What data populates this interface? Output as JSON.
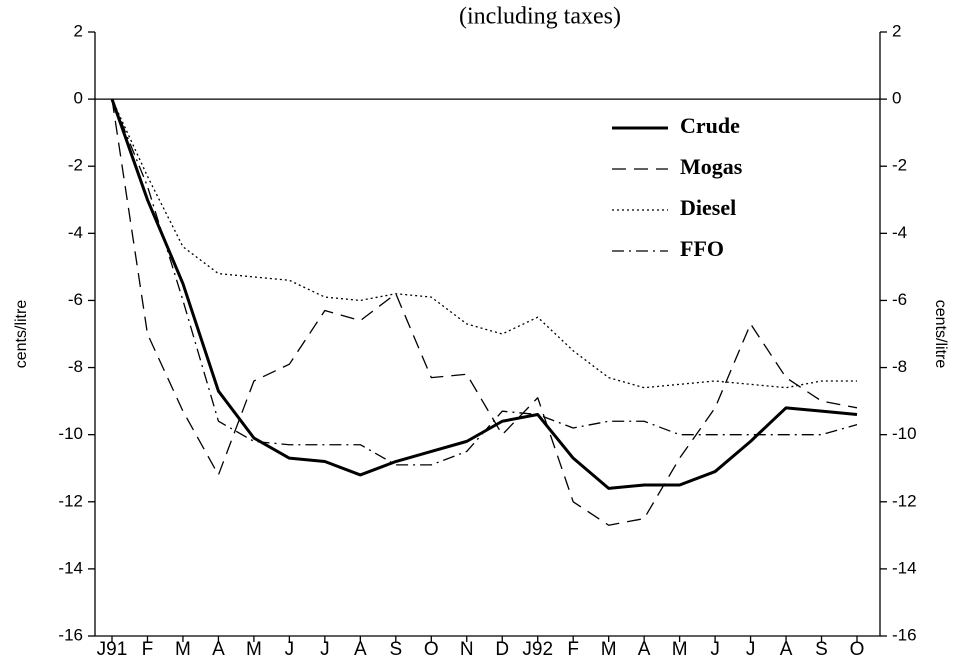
{
  "chart_data": {
    "type": "line",
    "title": "(including taxes)",
    "y_label": "cents/litre",
    "y2_label": "cents/litre",
    "categories": [
      "J91",
      "F",
      "M",
      "A",
      "M",
      "J",
      "J",
      "A",
      "S",
      "O",
      "N",
      "D",
      "J92",
      "F",
      "M",
      "A",
      "M",
      "J",
      "J",
      "A",
      "S",
      "O"
    ],
    "series": [
      {
        "name": "Crude",
        "color": "#000000",
        "style": "solid",
        "values": [
          0,
          -3.0,
          -5.5,
          -8.7,
          -10.1,
          -10.7,
          -10.8,
          -11.2,
          -10.8,
          -10.5,
          -10.2,
          -9.6,
          -9.4,
          -10.7,
          -11.6,
          -11.5,
          -11.5,
          -11.1,
          -10.2,
          -9.2,
          -9.3,
          -9.4
        ]
      },
      {
        "name": "Mogas",
        "color": "#000000",
        "style": "dashed",
        "values": [
          0,
          -7.0,
          -9.3,
          -11.2,
          -8.4,
          -7.9,
          -6.3,
          -6.6,
          -5.8,
          -8.3,
          -8.2,
          -10.0,
          -8.9,
          -12.0,
          -12.7,
          -12.5,
          -10.7,
          -9.2,
          -6.7,
          -8.3,
          -9.0,
          -9.2
        ]
      },
      {
        "name": "Diesel",
        "color": "#000000",
        "style": "dotted",
        "values": [
          0,
          -2.3,
          -4.4,
          -5.2,
          -5.3,
          -5.4,
          -5.9,
          -6.0,
          -5.8,
          -5.9,
          -6.7,
          -7.0,
          -6.5,
          -7.5,
          -8.3,
          -8.6,
          -8.5,
          -8.4,
          -8.5,
          -8.6,
          -8.4,
          -8.4
        ]
      },
      {
        "name": "FFO",
        "color": "#000000",
        "style": "dashdot",
        "values": [
          0,
          -2.6,
          -6.0,
          -9.6,
          -10.2,
          -10.3,
          -10.3,
          -10.3,
          -10.9,
          -10.9,
          -10.5,
          -9.3,
          -9.4,
          -9.8,
          -9.6,
          -9.6,
          -10.0,
          -10.0,
          -10.0,
          -10.0,
          -10.0,
          -9.7
        ]
      }
    ],
    "ylim": [
      -16,
      2
    ],
    "yticks": [
      -16,
      -14,
      -12,
      -10,
      -8,
      -6,
      -4,
      -2,
      0,
      2
    ],
    "y2lim": [
      -16,
      2
    ],
    "y2ticks": [
      -16,
      -14,
      -12,
      -10,
      -8,
      -6,
      -4,
      -2,
      0,
      2
    ],
    "legend": "upper right",
    "grid": false
  }
}
